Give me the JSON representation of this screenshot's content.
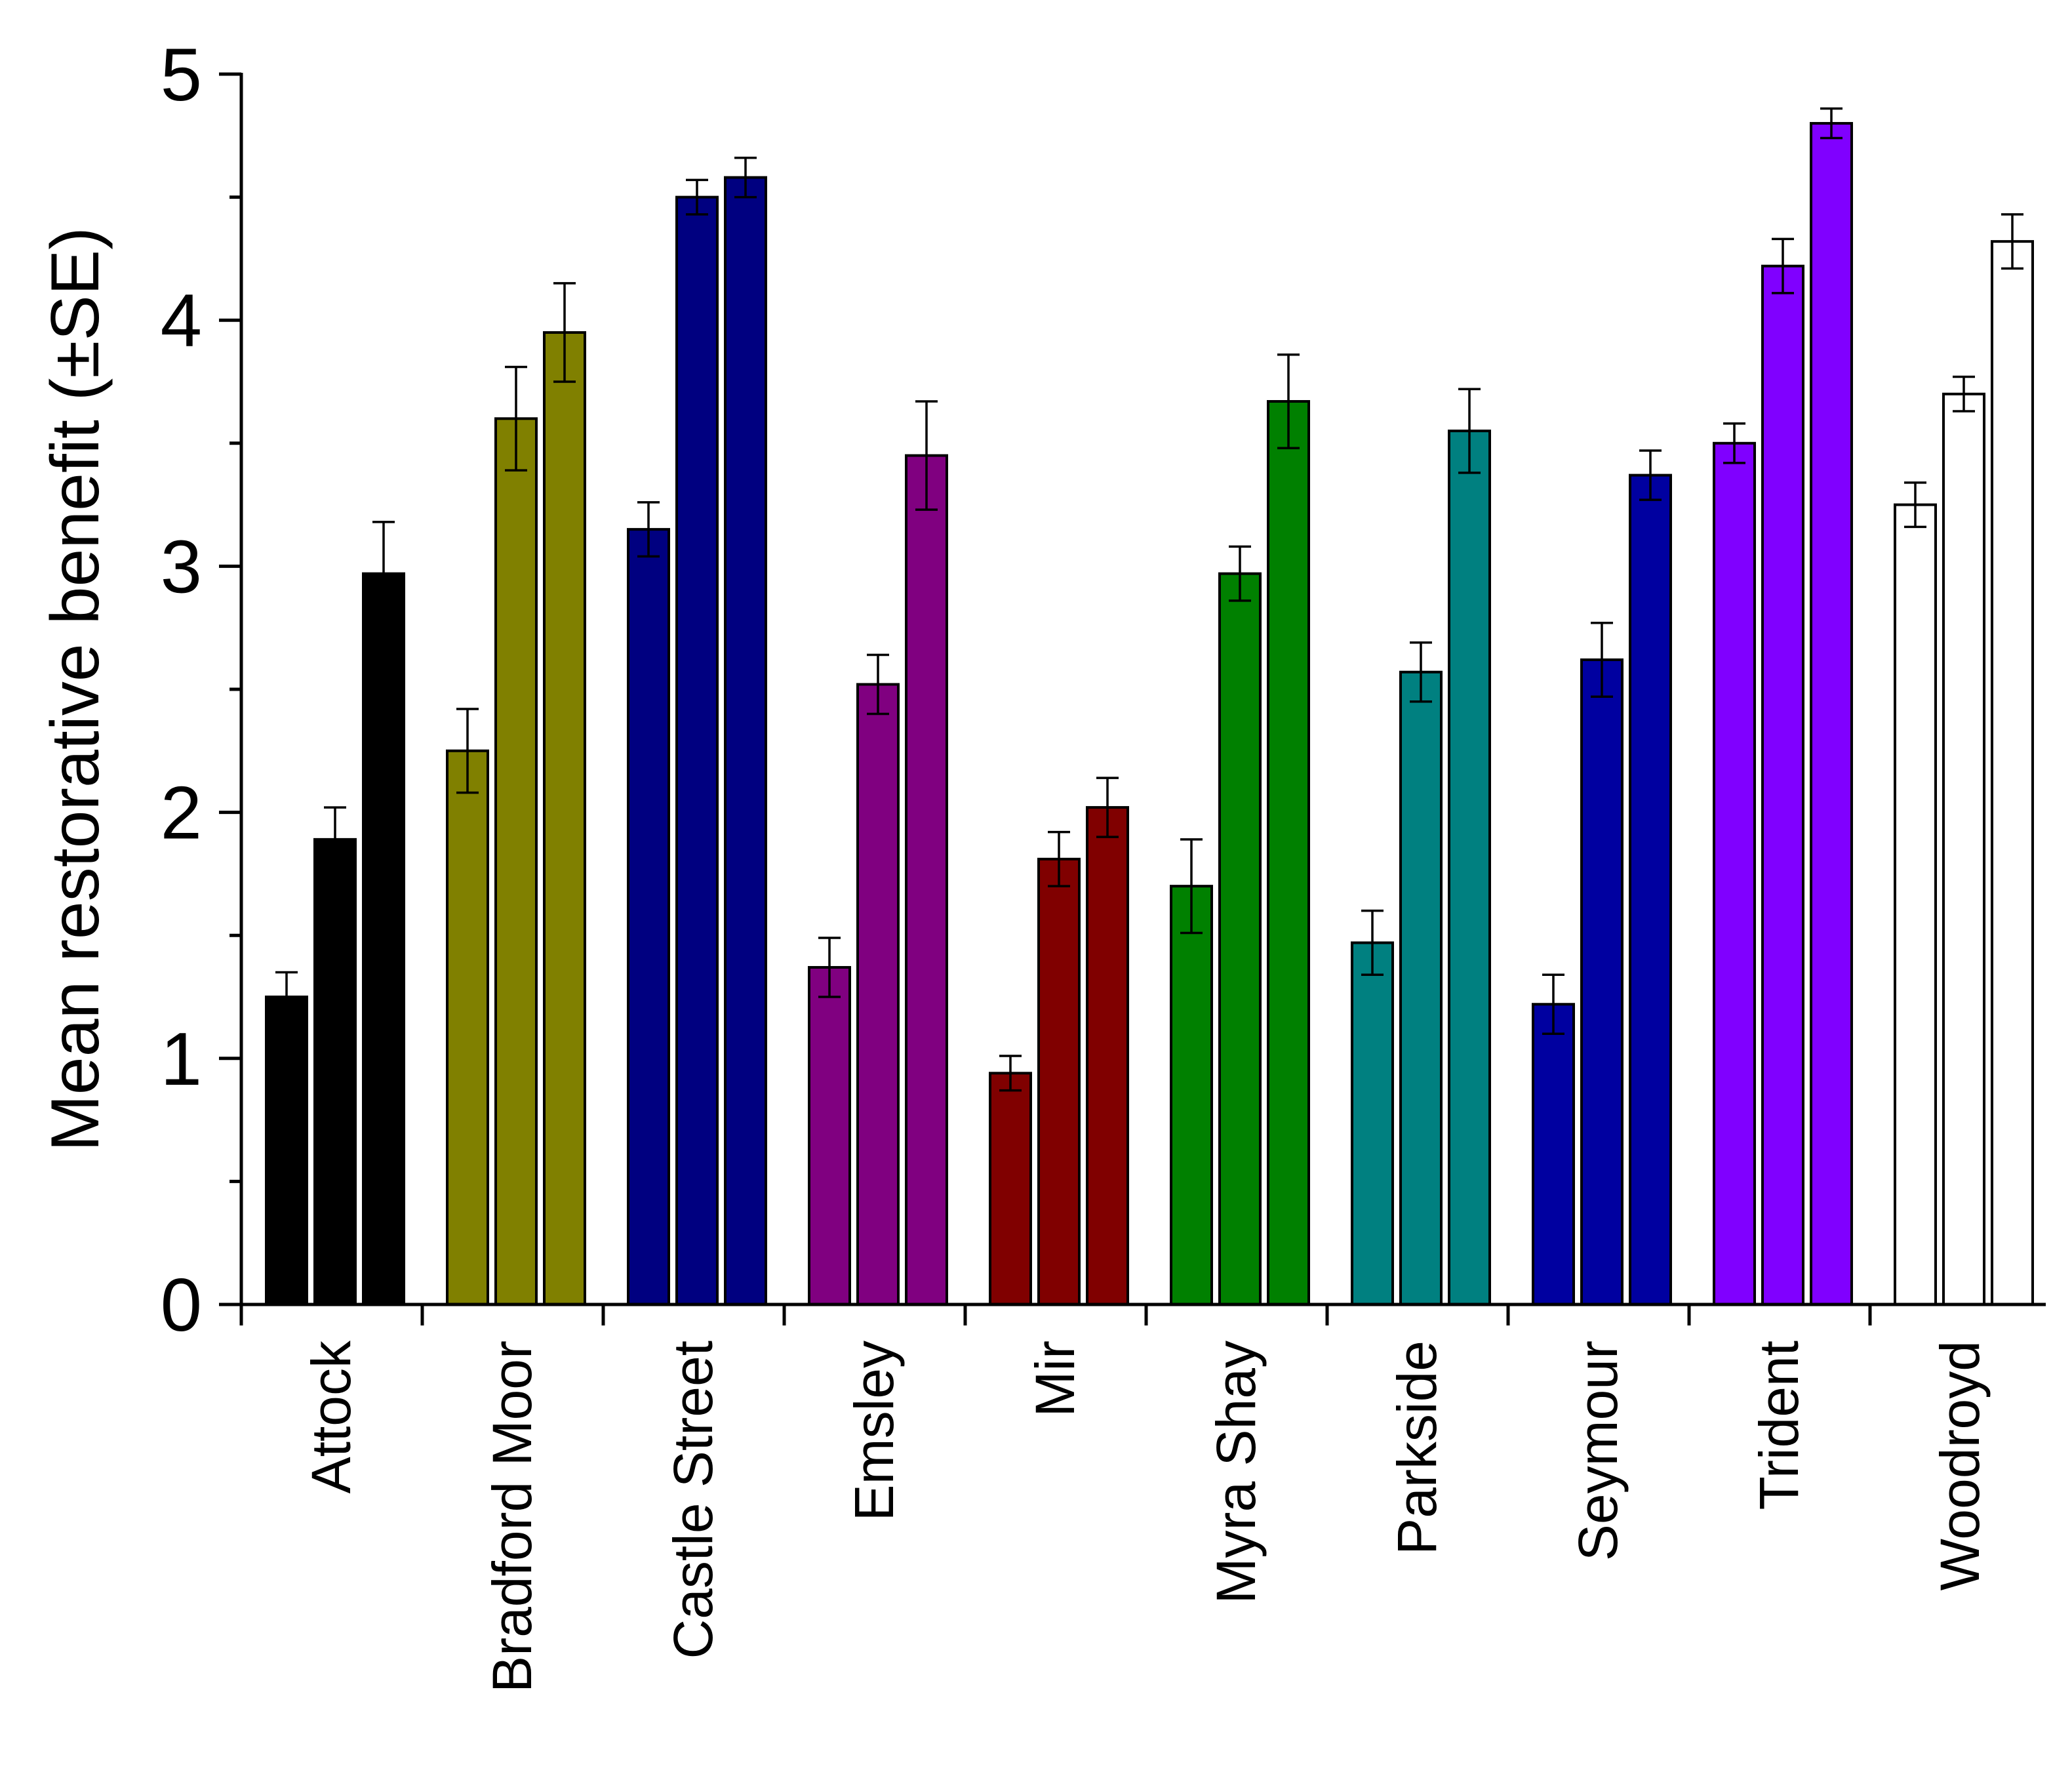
{
  "chart_data": {
    "type": "bar",
    "title": "",
    "xlabel": "",
    "ylabel": "Mean restorative benefit (±SE)",
    "ylim": [
      0,
      5
    ],
    "yticks": [
      "0",
      "1",
      "2",
      "3",
      "4",
      "5"
    ],
    "error_bars": "SE",
    "groups": [
      {
        "name": "Attock",
        "color": "#000000",
        "values": [
          1.25,
          1.89,
          2.97
        ],
        "errors": [
          0.1,
          0.13,
          0.21
        ]
      },
      {
        "name": "Bradford Moor",
        "color": "#808000",
        "values": [
          2.25,
          3.6,
          3.95
        ],
        "errors": [
          0.17,
          0.21,
          0.2
        ]
      },
      {
        "name": "Castle Street",
        "color": "#000080",
        "values": [
          3.15,
          4.5,
          4.58
        ],
        "errors": [
          0.11,
          0.07,
          0.08
        ]
      },
      {
        "name": "Emsley",
        "color": "#800080",
        "values": [
          1.37,
          2.52,
          3.45
        ],
        "errors": [
          0.12,
          0.12,
          0.22
        ]
      },
      {
        "name": "Mir",
        "color": "#800000",
        "values": [
          0.94,
          1.81,
          2.02
        ],
        "errors": [
          0.07,
          0.11,
          0.12
        ]
      },
      {
        "name": "Myra Shay",
        "color": "#008000",
        "values": [
          1.7,
          2.97,
          3.67
        ],
        "errors": [
          0.19,
          0.11,
          0.19
        ]
      },
      {
        "name": "Parkside",
        "color": "#008080",
        "values": [
          1.47,
          2.57,
          3.55
        ],
        "errors": [
          0.13,
          0.12,
          0.17
        ]
      },
      {
        "name": "Seymour",
        "color": "#0000A0",
        "values": [
          1.22,
          2.62,
          3.37
        ],
        "errors": [
          0.12,
          0.15,
          0.1
        ]
      },
      {
        "name": "Trident",
        "color": "#8000FF",
        "values": [
          3.5,
          4.22,
          4.8
        ],
        "errors": [
          0.08,
          0.11,
          0.06
        ]
      },
      {
        "name": "Woodroyd",
        "color": "#FFFFFF",
        "values": [
          3.25,
          3.7,
          4.32
        ],
        "errors": [
          0.09,
          0.07,
          0.11
        ]
      }
    ]
  }
}
